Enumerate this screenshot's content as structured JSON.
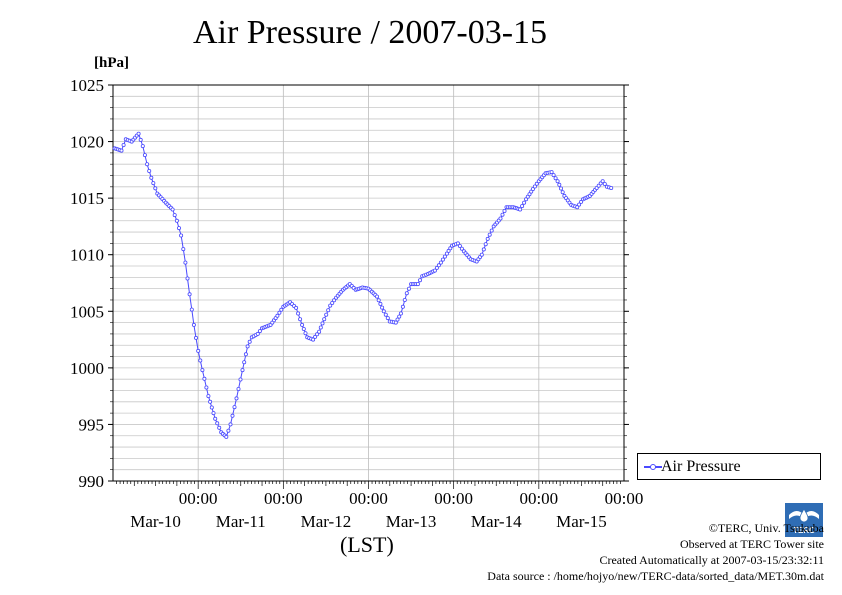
{
  "chart_data": {
    "type": "line",
    "title": "Air Pressure / 2007-03-15",
    "unit_label": "[hPa]",
    "xlabel": "(LST)",
    "ylim": [
      990,
      1025
    ],
    "y_ticks": [
      "1025",
      "1020",
      "1015",
      "1010",
      "1005",
      "1000",
      "995",
      "990"
    ],
    "x_day_ticks": [
      {
        "time": "00:00",
        "date": "Mar-10"
      },
      {
        "time": "00:00",
        "date": "Mar-11"
      },
      {
        "time": "00:00",
        "date": "Mar-12"
      },
      {
        "time": "00:00",
        "date": "Mar-13"
      },
      {
        "time": "00:00",
        "date": "Mar-14"
      },
      {
        "time": "00:00",
        "date": "Mar-15"
      }
    ],
    "x_range_days": [
      -1,
      5
    ],
    "grid": true,
    "legend_position": "right",
    "series": [
      {
        "name": "Air Pressure",
        "color": "#4a4aff",
        "points": [
          [
            -0.98,
            1019.4
          ],
          [
            -0.9,
            1019.2
          ],
          [
            -0.85,
            1020.2
          ],
          [
            -0.78,
            1020.0
          ],
          [
            -0.7,
            1020.7
          ],
          [
            -0.65,
            1019.6
          ],
          [
            -0.6,
            1018.0
          ],
          [
            -0.55,
            1016.8
          ],
          [
            -0.48,
            1015.4
          ],
          [
            -0.38,
            1014.6
          ],
          [
            -0.3,
            1014.0
          ],
          [
            -0.25,
            1013.0
          ],
          [
            -0.2,
            1011.7
          ],
          [
            -0.15,
            1009.3
          ],
          [
            -0.1,
            1006.5
          ],
          [
            -0.05,
            1003.8
          ],
          [
            0.0,
            1001.5
          ],
          [
            0.05,
            999.8
          ],
          [
            0.12,
            997.5
          ],
          [
            0.2,
            995.5
          ],
          [
            0.27,
            994.3
          ],
          [
            0.33,
            993.9
          ],
          [
            0.38,
            995.0
          ],
          [
            0.45,
            997.3
          ],
          [
            0.52,
            999.8
          ],
          [
            0.58,
            1001.9
          ],
          [
            0.63,
            1002.7
          ],
          [
            0.7,
            1003.0
          ],
          [
            0.75,
            1003.5
          ],
          [
            0.85,
            1003.8
          ],
          [
            0.93,
            1004.6
          ],
          [
            1.0,
            1005.4
          ],
          [
            1.08,
            1005.8
          ],
          [
            1.15,
            1005.3
          ],
          [
            1.22,
            1003.8
          ],
          [
            1.28,
            1002.7
          ],
          [
            1.35,
            1002.5
          ],
          [
            1.42,
            1003.2
          ],
          [
            1.48,
            1004.3
          ],
          [
            1.55,
            1005.5
          ],
          [
            1.62,
            1006.2
          ],
          [
            1.7,
            1006.9
          ],
          [
            1.78,
            1007.4
          ],
          [
            1.85,
            1006.9
          ],
          [
            1.93,
            1007.1
          ],
          [
            2.0,
            1007.0
          ],
          [
            2.1,
            1006.3
          ],
          [
            2.18,
            1005.0
          ],
          [
            2.25,
            1004.1
          ],
          [
            2.32,
            1004.0
          ],
          [
            2.38,
            1004.8
          ],
          [
            2.45,
            1006.6
          ],
          [
            2.5,
            1007.4
          ],
          [
            2.58,
            1007.4
          ],
          [
            2.63,
            1008.1
          ],
          [
            2.7,
            1008.3
          ],
          [
            2.78,
            1008.6
          ],
          [
            2.85,
            1009.3
          ],
          [
            2.92,
            1010.1
          ],
          [
            2.98,
            1010.8
          ],
          [
            3.05,
            1011.0
          ],
          [
            3.12,
            1010.3
          ],
          [
            3.2,
            1009.6
          ],
          [
            3.27,
            1009.4
          ],
          [
            3.33,
            1010.0
          ],
          [
            3.4,
            1011.4
          ],
          [
            3.47,
            1012.5
          ],
          [
            3.55,
            1013.2
          ],
          [
            3.62,
            1014.2
          ],
          [
            3.7,
            1014.2
          ],
          [
            3.78,
            1014.0
          ],
          [
            3.85,
            1014.9
          ],
          [
            3.93,
            1015.8
          ],
          [
            4.0,
            1016.5
          ],
          [
            4.08,
            1017.2
          ],
          [
            4.15,
            1017.3
          ],
          [
            4.22,
            1016.5
          ],
          [
            4.3,
            1015.2
          ],
          [
            4.38,
            1014.4
          ],
          [
            4.45,
            1014.2
          ],
          [
            4.52,
            1014.9
          ],
          [
            4.6,
            1015.2
          ],
          [
            4.68,
            1015.9
          ],
          [
            4.75,
            1016.5
          ],
          [
            4.8,
            1016.0
          ],
          [
            4.85,
            1015.9
          ]
        ]
      }
    ]
  },
  "legend": {
    "label": "Air Pressure"
  },
  "credits": {
    "copyright": "©TERC, Univ. Tsukuba",
    "observed": "Observed at TERC Tower site",
    "created": "Created Automatically at 2007-03-15/23:32:11",
    "source": "Data source : /home/hojyo/new/TERC-data/sorted_data/MET.30m.dat"
  },
  "logo_text": "TERC"
}
